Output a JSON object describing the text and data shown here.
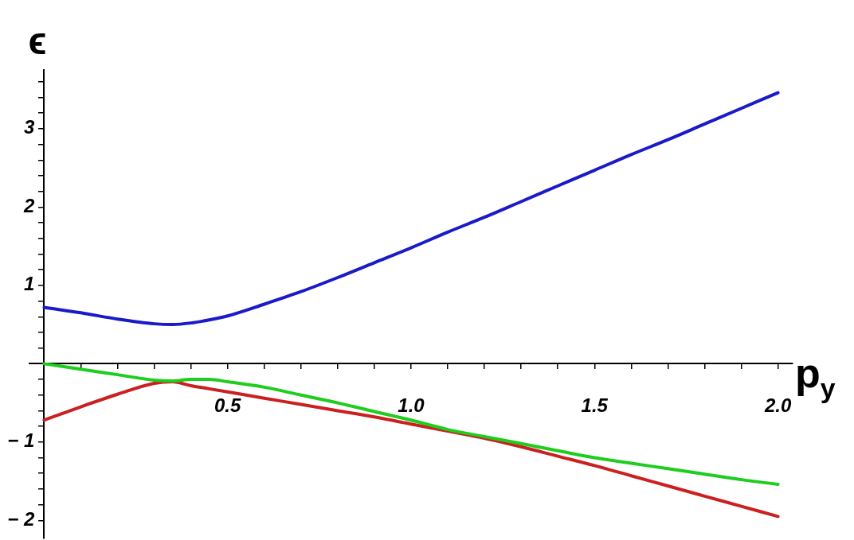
{
  "chart_data": {
    "type": "line",
    "xlabel": "p$_{y}$",
    "ylabel": "ϵ",
    "xlim": [
      -0.04,
      2.04
    ],
    "ylim": [
      -2.23,
      3.75
    ],
    "xticks": [
      {
        "value": 0.1,
        "label": null
      },
      {
        "value": 0.2,
        "label": null
      },
      {
        "value": 0.3,
        "label": null
      },
      {
        "value": 0.4,
        "label": null
      },
      {
        "value": 0.5,
        "label": "0.5"
      },
      {
        "value": 0.6,
        "label": null
      },
      {
        "value": 0.7,
        "label": null
      },
      {
        "value": 0.8,
        "label": null
      },
      {
        "value": 0.9,
        "label": null
      },
      {
        "value": 1,
        "label": "1.0"
      },
      {
        "value": 1.1,
        "label": null
      },
      {
        "value": 1.2,
        "label": null
      },
      {
        "value": 1.3,
        "label": null
      },
      {
        "value": 1.4,
        "label": null
      },
      {
        "value": 1.5,
        "label": "1.5"
      },
      {
        "value": 1.6,
        "label": null
      },
      {
        "value": 1.7,
        "label": null
      },
      {
        "value": 1.8,
        "label": null
      },
      {
        "value": 1.9,
        "label": null
      },
      {
        "value": 2,
        "label": "2.0"
      }
    ],
    "yticks": [
      {
        "value": -2,
        "label": "− 2"
      },
      {
        "value": -1.8,
        "label": null
      },
      {
        "value": -1.6,
        "label": null
      },
      {
        "value": -1.4,
        "label": null
      },
      {
        "value": -1.2,
        "label": null
      },
      {
        "value": -1,
        "label": "− 1"
      },
      {
        "value": -0.8,
        "label": null
      },
      {
        "value": -0.6,
        "label": null
      },
      {
        "value": -0.4,
        "label": null
      },
      {
        "value": -0.2,
        "label": null
      },
      {
        "value": 0.2,
        "label": null
      },
      {
        "value": 0.4,
        "label": null
      },
      {
        "value": 0.6,
        "label": null
      },
      {
        "value": 0.8,
        "label": null
      },
      {
        "value": 1,
        "label": "1"
      },
      {
        "value": 1.2,
        "label": null
      },
      {
        "value": 1.4,
        "label": null
      },
      {
        "value": 1.6,
        "label": null
      },
      {
        "value": 1.8,
        "label": null
      },
      {
        "value": 2,
        "label": "2"
      },
      {
        "value": 2.2,
        "label": null
      },
      {
        "value": 2.4,
        "label": null
      },
      {
        "value": 2.6,
        "label": null
      },
      {
        "value": 2.8,
        "label": null
      },
      {
        "value": 3,
        "label": "3"
      },
      {
        "value": 3.2,
        "label": null
      },
      {
        "value": 3.4,
        "label": null
      },
      {
        "value": 3.6,
        "label": null
      }
    ],
    "x": [
      0,
      0.1,
      0.2,
      0.3,
      0.35,
      0.4,
      0.45,
      0.5,
      0.6,
      0.7,
      0.8,
      0.9,
      1.0,
      1.1,
      1.2,
      1.3,
      1.4,
      1.5,
      1.6,
      1.7,
      1.8,
      1.9,
      2.0
    ],
    "series": [
      {
        "color": "#1a1ac8",
        "values": [
          0.72,
          0.65,
          0.57,
          0.51,
          0.5,
          0.52,
          0.56,
          0.61,
          0.76,
          0.92,
          1.1,
          1.29,
          1.48,
          1.68,
          1.87,
          2.07,
          2.27,
          2.47,
          2.67,
          2.86,
          3.06,
          3.26,
          3.46
        ]
      },
      {
        "color": "#1ecd1e",
        "values": [
          0,
          -0.07,
          -0.14,
          -0.21,
          -0.22,
          -0.2,
          -0.2,
          -0.23,
          -0.3,
          -0.4,
          -0.5,
          -0.61,
          -0.72,
          -0.84,
          -0.93,
          -1.02,
          -1.11,
          -1.2,
          -1.27,
          -1.34,
          -1.41,
          -1.48,
          -1.54
        ]
      },
      {
        "color": "#cc1f1f",
        "values": [
          -0.72,
          -0.55,
          -0.39,
          -0.25,
          -0.23,
          -0.28,
          -0.32,
          -0.36,
          -0.44,
          -0.52,
          -0.6,
          -0.68,
          -0.77,
          -0.86,
          -0.95,
          -1.06,
          -1.18,
          -1.3,
          -1.43,
          -1.56,
          -1.69,
          -1.82,
          -1.95
        ]
      }
    ],
    "grid": false,
    "legend": false,
    "marker": "none",
    "line_style": "solid"
  }
}
